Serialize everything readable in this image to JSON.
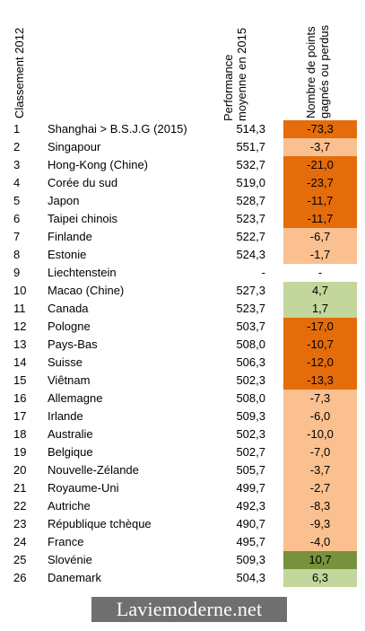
{
  "header": {
    "rank": "Classement 2012",
    "performance_line1": "Performance",
    "performance_line2": "moyenne en 2015",
    "points_line1": "Nombre de points",
    "points_line2": "gagnés ou perdus"
  },
  "colors": {
    "strong_loss": "#e46c0a",
    "light_loss": "#fac090",
    "light_gain": "#c3d69b",
    "strong_gain": "#76923c"
  },
  "rows": [
    {
      "rank": "1",
      "country": "Shanghai > B.S.J.G (2015)",
      "performance": "514,3",
      "points": "-73,3",
      "tone": "strong_loss"
    },
    {
      "rank": "2",
      "country": "Singapour",
      "performance": "551,7",
      "points": "-3,7",
      "tone": "light_loss"
    },
    {
      "rank": "3",
      "country": "Hong-Kong (Chine)",
      "performance": "532,7",
      "points": "-21,0",
      "tone": "strong_loss"
    },
    {
      "rank": "4",
      "country": "Corée du sud",
      "performance": "519,0",
      "points": "-23,7",
      "tone": "strong_loss"
    },
    {
      "rank": "5",
      "country": "Japon",
      "performance": "528,7",
      "points": "-11,7",
      "tone": "strong_loss"
    },
    {
      "rank": "6",
      "country": "Taipei chinois",
      "performance": "523,7",
      "points": "-11,7",
      "tone": "strong_loss"
    },
    {
      "rank": "7",
      "country": "Finlande",
      "performance": "522,7",
      "points": "-6,7",
      "tone": "light_loss"
    },
    {
      "rank": "8",
      "country": "Estonie",
      "performance": "524,3",
      "points": "-1,7",
      "tone": "light_loss"
    },
    {
      "rank": "9",
      "country": "Liechtenstein",
      "performance": "-",
      "points": "-",
      "tone": "none"
    },
    {
      "rank": "10",
      "country": "Macao (Chine)",
      "performance": "527,3",
      "points": "4,7",
      "tone": "light_gain"
    },
    {
      "rank": "11",
      "country": "Canada",
      "performance": "523,7",
      "points": "1,7",
      "tone": "light_gain"
    },
    {
      "rank": "12",
      "country": "Pologne",
      "performance": "503,7",
      "points": "-17,0",
      "tone": "strong_loss"
    },
    {
      "rank": "13",
      "country": "Pays-Bas",
      "performance": "508,0",
      "points": "-10,7",
      "tone": "strong_loss"
    },
    {
      "rank": "14",
      "country": "Suisse",
      "performance": "506,3",
      "points": "-12,0",
      "tone": "strong_loss"
    },
    {
      "rank": "15",
      "country": "Viêtnam",
      "performance": "502,3",
      "points": "-13,3",
      "tone": "strong_loss"
    },
    {
      "rank": "16",
      "country": "Allemagne",
      "performance": "508,0",
      "points": "-7,3",
      "tone": "light_loss"
    },
    {
      "rank": "17",
      "country": "Irlande",
      "performance": "509,3",
      "points": "-6,0",
      "tone": "light_loss"
    },
    {
      "rank": "18",
      "country": "Australie",
      "performance": "502,3",
      "points": "-10,0",
      "tone": "light_loss"
    },
    {
      "rank": "19",
      "country": "Belgique",
      "performance": "502,7",
      "points": "-7,0",
      "tone": "light_loss"
    },
    {
      "rank": "20",
      "country": "Nouvelle-Zélande",
      "performance": "505,7",
      "points": "-3,7",
      "tone": "light_loss"
    },
    {
      "rank": "21",
      "country": "Royaume-Uni",
      "performance": "499,7",
      "points": "-2,7",
      "tone": "light_loss"
    },
    {
      "rank": "22",
      "country": "Autriche",
      "performance": "492,3",
      "points": "-8,3",
      "tone": "light_loss"
    },
    {
      "rank": "23",
      "country": "République tchèque",
      "performance": "490,7",
      "points": "-9,3",
      "tone": "light_loss"
    },
    {
      "rank": "24",
      "country": "France",
      "performance": "495,7",
      "points": "-4,0",
      "tone": "light_loss"
    },
    {
      "rank": "25",
      "country": "Slovénie",
      "performance": "509,3",
      "points": "10,7",
      "tone": "strong_gain"
    },
    {
      "rank": "26",
      "country": "Danemark",
      "performance": "504,3",
      "points": "6,3",
      "tone": "light_gain"
    }
  ],
  "watermark": "Laviemoderne.net"
}
